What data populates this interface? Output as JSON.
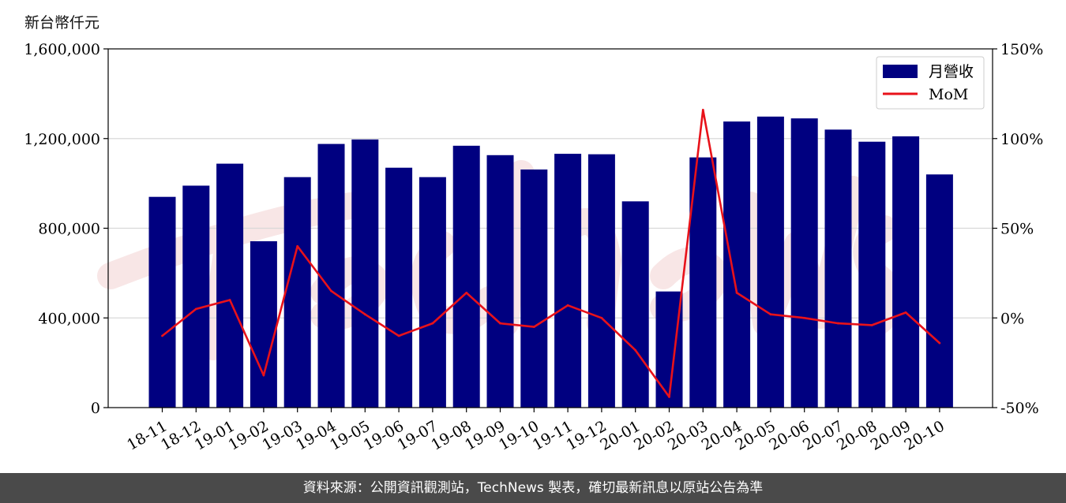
{
  "unit_label": "新台幣仟元",
  "footer_text": "資料來源：公開資訊觀測站，TechNews 製表，確切最新訊息以原站公告為準",
  "watermark_icon": "technews-watermark-logo",
  "colors": {
    "bar": "#000080",
    "line": "#e8121a",
    "grid": "#d9d9d9",
    "footer_bg": "#4a4a4a"
  },
  "chart_data": {
    "type": "bar",
    "categories": [
      "18-11",
      "18-12",
      "19-01",
      "19-02",
      "19-03",
      "19-04",
      "19-05",
      "19-06",
      "19-07",
      "19-08",
      "19-09",
      "19-10",
      "19-11",
      "19-12",
      "20-01",
      "20-02",
      "20-03",
      "20-04",
      "20-05",
      "20-06",
      "20-07",
      "20-08",
      "20-09",
      "20-10"
    ],
    "series": [
      {
        "name": "月營收",
        "type": "bar",
        "axis": "left",
        "values": [
          940000,
          990000,
          1088000,
          742000,
          1028000,
          1176000,
          1196000,
          1070000,
          1028000,
          1168000,
          1126000,
          1062000,
          1132000,
          1130000,
          920000,
          518000,
          1116000,
          1276000,
          1298000,
          1290000,
          1240000,
          1186000,
          1210000,
          1040000
        ]
      },
      {
        "name": "MoM",
        "type": "line",
        "axis": "right",
        "values": [
          -10,
          5,
          10,
          -32,
          40,
          15,
          2,
          -10,
          -3,
          14,
          -3,
          -5,
          7,
          0,
          -18,
          -44,
          116,
          14,
          2,
          0,
          -3,
          -4,
          3,
          -14
        ]
      }
    ],
    "y_left": {
      "lim": [
        0,
        1600000
      ],
      "ticks": [
        0,
        400000,
        800000,
        1200000,
        1600000
      ],
      "tick_labels": [
        "0",
        "400,000",
        "800,000",
        "1,200,000",
        "1,600,000"
      ]
    },
    "y_right": {
      "lim": [
        -50,
        150
      ],
      "ticks": [
        -50,
        0,
        50,
        100,
        150
      ],
      "tick_labels": [
        "-50%",
        "0%",
        "50%",
        "100%",
        "150%"
      ]
    },
    "grid": true,
    "legend": "top-right"
  }
}
